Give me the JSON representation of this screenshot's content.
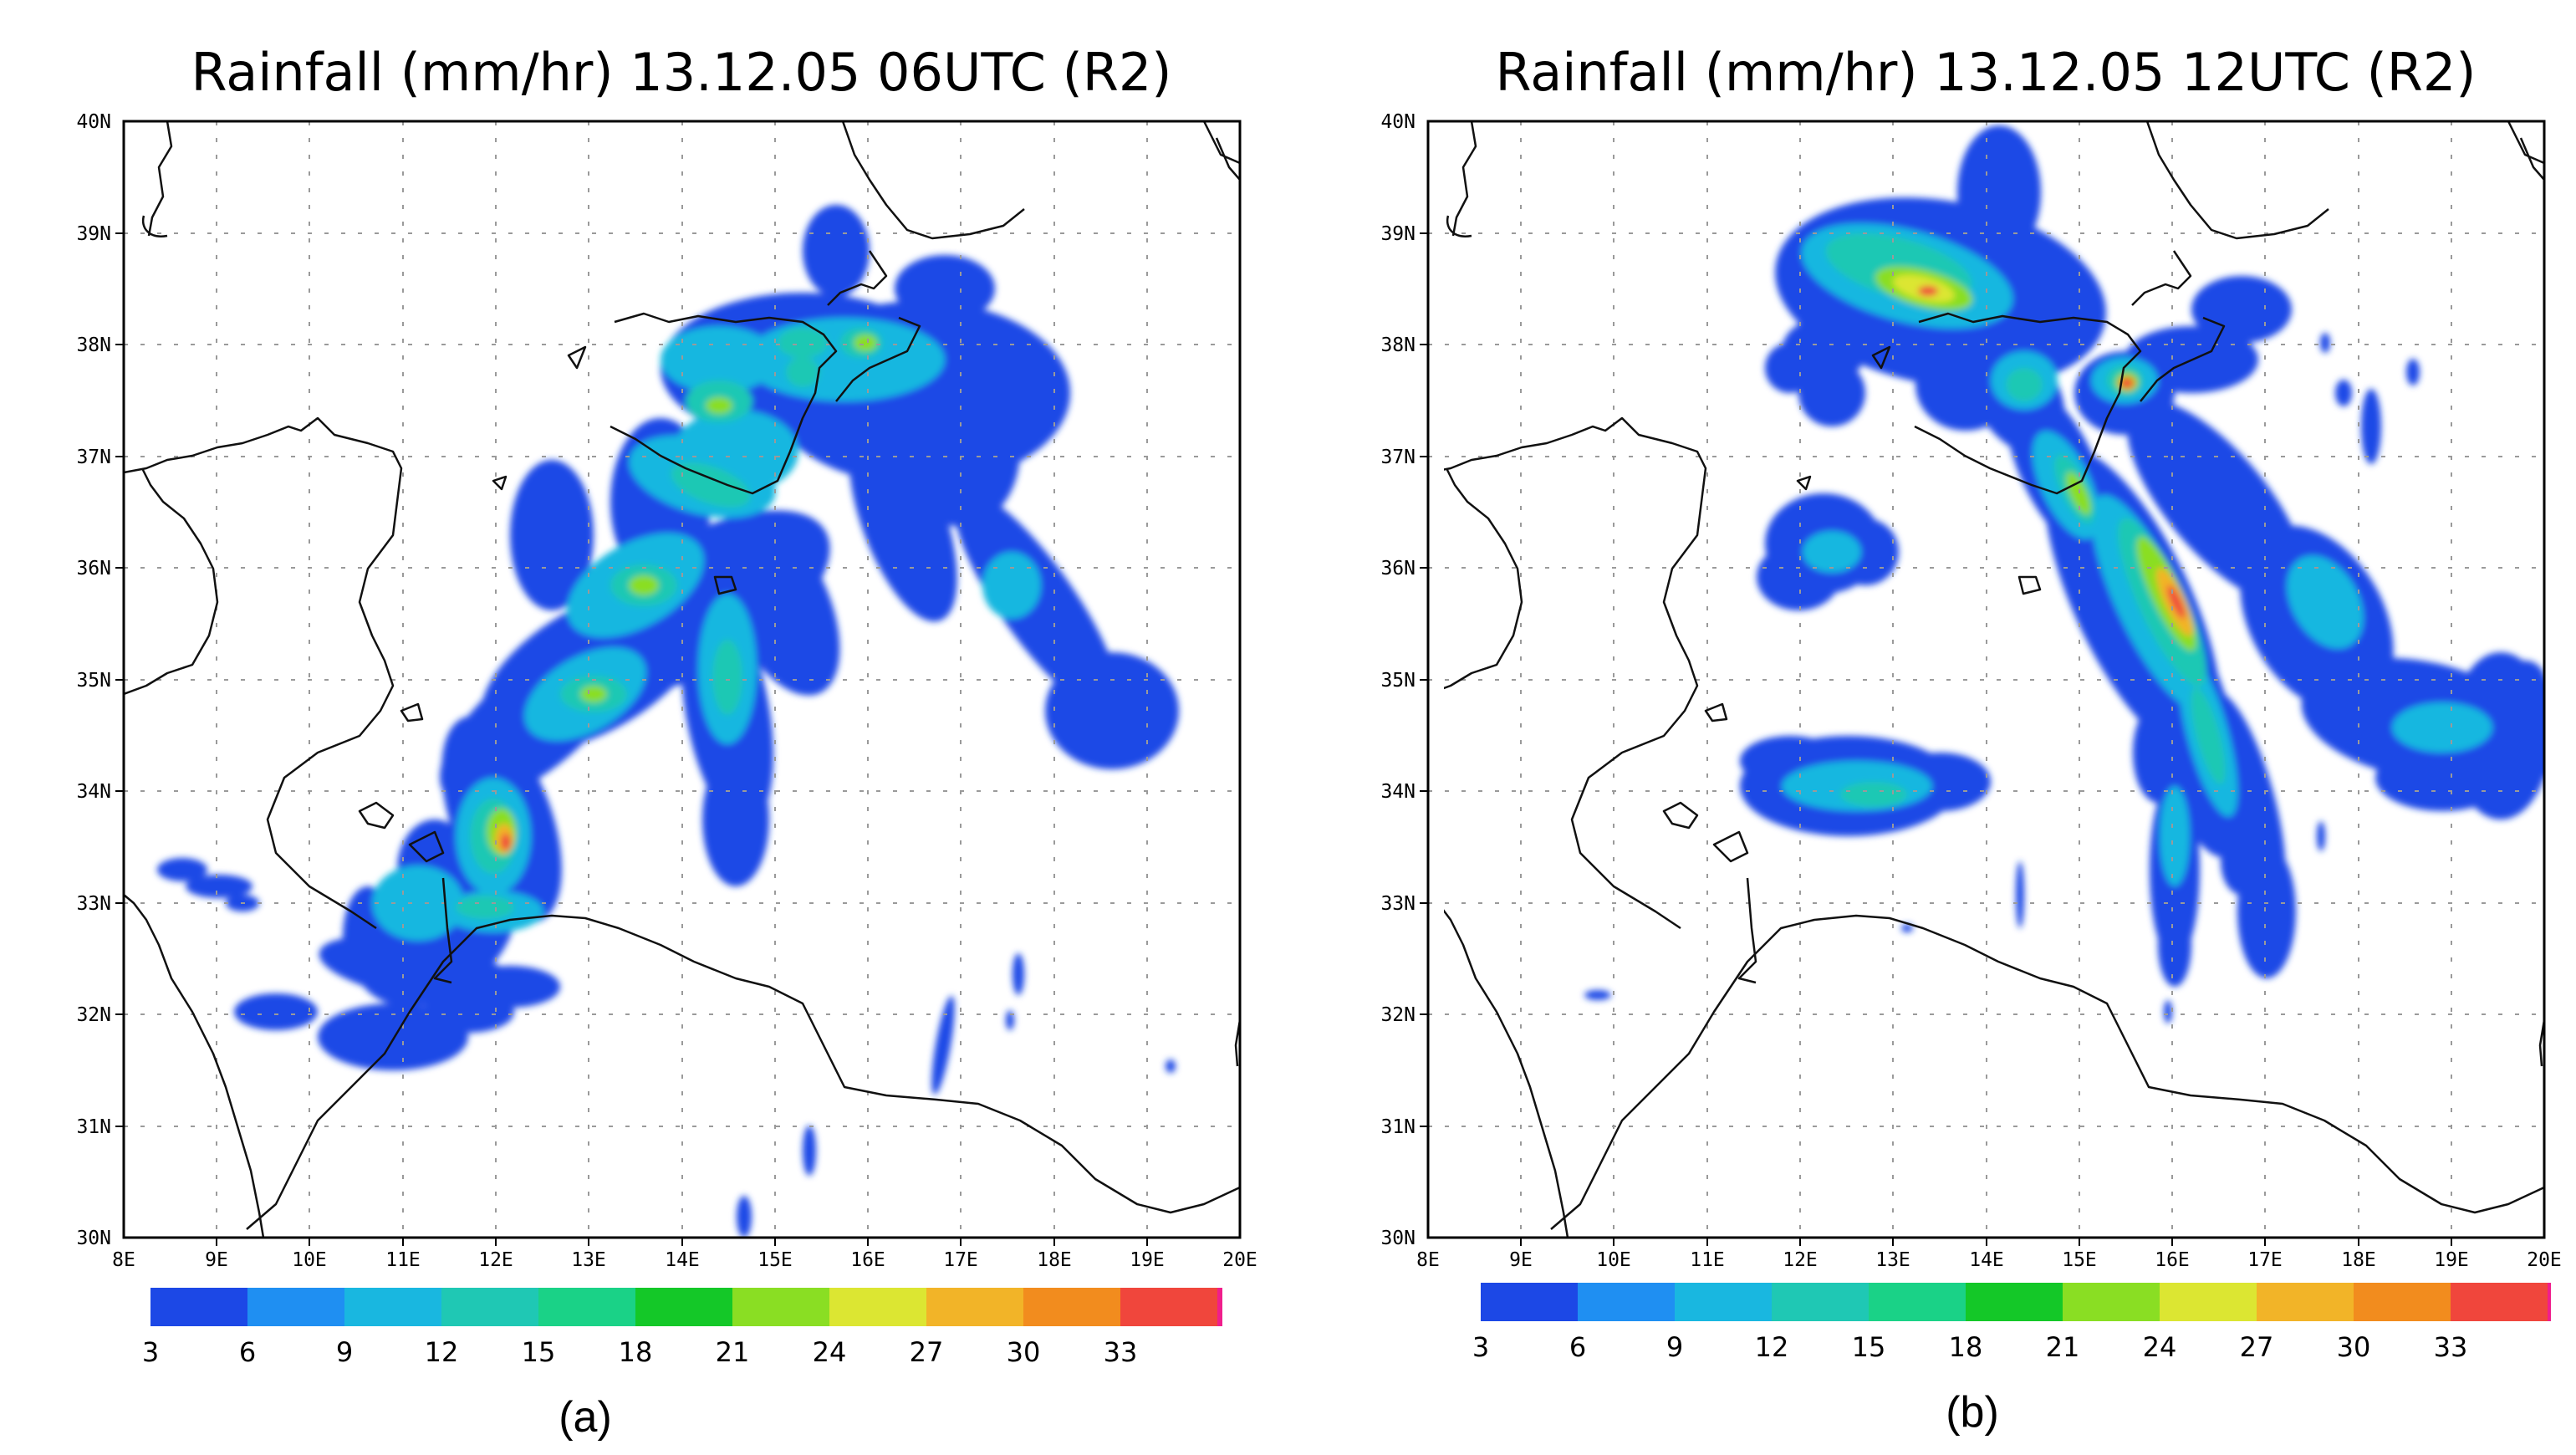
{
  "panels": [
    {
      "id": "a",
      "title": "Rainfall (mm/hr) 13.12.05 06UTC (R2)",
      "caption": "(a)"
    },
    {
      "id": "b",
      "title": "Rainfall (mm/hr) 13.12.05 12UTC (R2)",
      "caption": "(b)"
    }
  ],
  "map": {
    "lon_range": [
      8,
      20
    ],
    "lat_range": [
      30,
      40
    ],
    "x_tick_labels": [
      "8E",
      "9E",
      "10E",
      "11E",
      "12E",
      "13E",
      "14E",
      "15E",
      "16E",
      "17E",
      "18E",
      "19E",
      "20E"
    ],
    "y_tick_labels": [
      "30N",
      "31N",
      "32N",
      "33N",
      "34N",
      "35N",
      "36N",
      "37N",
      "38N",
      "39N",
      "40N"
    ],
    "grid": true
  },
  "colorbar": {
    "labels": [
      "3",
      "6",
      "9",
      "12",
      "15",
      "18",
      "21",
      "24",
      "27",
      "30",
      "33"
    ],
    "colors": [
      "#1c48e6",
      "#1f8ff2",
      "#19b7e0",
      "#1fc8b4",
      "#1ad287",
      "#14c828",
      "#8ade23",
      "#dce632",
      "#f2b428",
      "#f28c1e",
      "#f0463c",
      "#f01e8c"
    ]
  },
  "chart_data": [
    {
      "type": "heatmap",
      "title": "Rainfall (mm/hr) 13.12.05 06UTC (R2)",
      "x_range": [
        8,
        20
      ],
      "y_range": [
        30,
        40
      ],
      "unit": "mm/hr",
      "levels": [
        3,
        6,
        9,
        12,
        15,
        18,
        21,
        24,
        27,
        30,
        33
      ],
      "peak_value_approx": 30,
      "peak_location": {
        "lon": 12.2,
        "lat": 33.6
      }
    },
    {
      "type": "heatmap",
      "title": "Rainfall (mm/hr) 13.12.05 12UTC (R2)",
      "x_range": [
        8,
        20
      ],
      "y_range": [
        30,
        40
      ],
      "unit": "mm/hr",
      "levels": [
        3,
        6,
        9,
        12,
        15,
        18,
        21,
        24,
        27,
        30,
        33
      ],
      "peak_value_approx": 30,
      "peak_location": {
        "lon": 15.1,
        "lat": 37.7
      }
    }
  ]
}
